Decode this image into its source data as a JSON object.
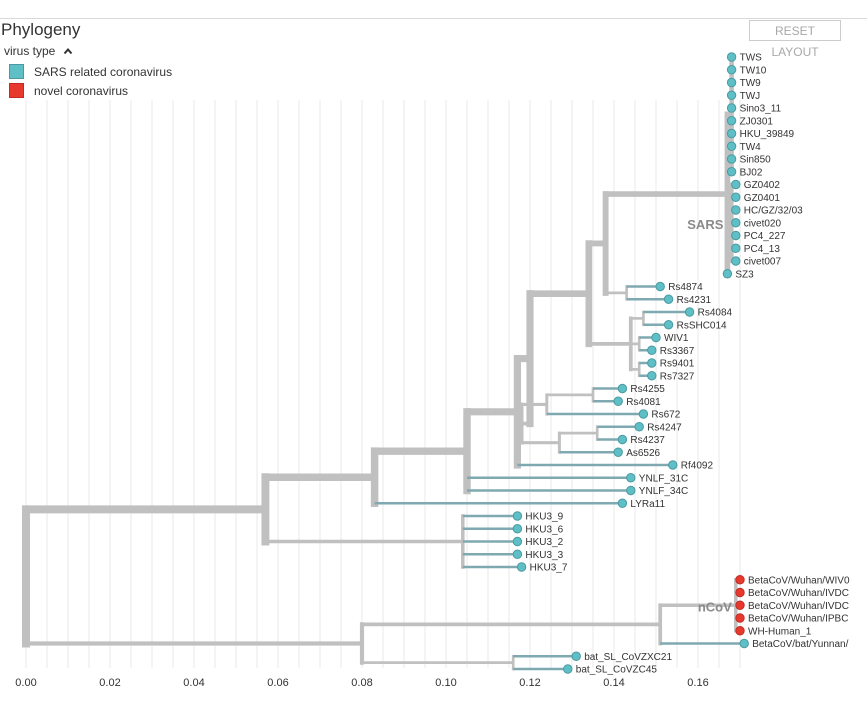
{
  "panel": {
    "title": "Phylogeny",
    "reset_label": "RESET LAYOUT"
  },
  "legend": {
    "title": "virus type",
    "toggle_icon": "chevron-up-icon",
    "items": [
      {
        "label": "SARS related coronavirus",
        "color": "#5fbfc6"
      },
      {
        "label": "novel coronavirus",
        "color": "#e8392f"
      }
    ]
  },
  "colors": {
    "branch": "#c0c0c0",
    "branch_sars_related": "#7fa9b0",
    "grid": "#e8e8e8"
  },
  "tree": {
    "x_axis_ticks": [
      "0.00",
      "0.02",
      "0.04",
      "0.06",
      "0.08",
      "0.10",
      "0.12",
      "0.14",
      "0.16"
    ],
    "clade_labels": [
      "SARS",
      "nCoV"
    ],
    "tips": [
      {
        "name": "TWS",
        "div": 0.168,
        "type": "sars"
      },
      {
        "name": "TW10",
        "div": 0.168,
        "type": "sars"
      },
      {
        "name": "TW9",
        "div": 0.168,
        "type": "sars"
      },
      {
        "name": "TWJ",
        "div": 0.168,
        "type": "sars"
      },
      {
        "name": "Sino3_11",
        "div": 0.168,
        "type": "sars"
      },
      {
        "name": "ZJ0301",
        "div": 0.168,
        "type": "sars"
      },
      {
        "name": "HKU_39849",
        "div": 0.168,
        "type": "sars"
      },
      {
        "name": "TW4",
        "div": 0.168,
        "type": "sars"
      },
      {
        "name": "Sin850",
        "div": 0.168,
        "type": "sars"
      },
      {
        "name": "BJ02",
        "div": 0.168,
        "type": "sars"
      },
      {
        "name": "GZ0402",
        "div": 0.169,
        "type": "sars"
      },
      {
        "name": "GZ0401",
        "div": 0.169,
        "type": "sars"
      },
      {
        "name": "HC/GZ/32/03",
        "div": 0.169,
        "type": "sars"
      },
      {
        "name": "civet020",
        "div": 0.169,
        "type": "sars"
      },
      {
        "name": "PC4_227",
        "div": 0.169,
        "type": "sars"
      },
      {
        "name": "PC4_13",
        "div": 0.169,
        "type": "sars"
      },
      {
        "name": "civet007",
        "div": 0.169,
        "type": "sars"
      },
      {
        "name": "SZ3",
        "div": 0.167,
        "type": "sars"
      },
      {
        "name": "Rs4874",
        "div": 0.151,
        "type": "sars"
      },
      {
        "name": "Rs4231",
        "div": 0.153,
        "type": "sars"
      },
      {
        "name": "Rs4084",
        "div": 0.158,
        "type": "sars"
      },
      {
        "name": "RsSHC014",
        "div": 0.153,
        "type": "sars"
      },
      {
        "name": "WIV1",
        "div": 0.15,
        "type": "sars"
      },
      {
        "name": "Rs3367",
        "div": 0.149,
        "type": "sars"
      },
      {
        "name": "Rs9401",
        "div": 0.149,
        "type": "sars"
      },
      {
        "name": "Rs7327",
        "div": 0.149,
        "type": "sars"
      },
      {
        "name": "Rs4255",
        "div": 0.142,
        "type": "sars"
      },
      {
        "name": "Rs4081",
        "div": 0.141,
        "type": "sars"
      },
      {
        "name": "Rs672",
        "div": 0.147,
        "type": "sars"
      },
      {
        "name": "Rs4247",
        "div": 0.146,
        "type": "sars"
      },
      {
        "name": "Rs4237",
        "div": 0.142,
        "type": "sars"
      },
      {
        "name": "As6526",
        "div": 0.141,
        "type": "sars"
      },
      {
        "name": "Rf4092",
        "div": 0.154,
        "type": "sars"
      },
      {
        "name": "YNLF_31C",
        "div": 0.144,
        "type": "sars"
      },
      {
        "name": "YNLF_34C",
        "div": 0.144,
        "type": "sars"
      },
      {
        "name": "LYRa11",
        "div": 0.142,
        "type": "sars"
      },
      {
        "name": "HKU3_9",
        "div": 0.117,
        "type": "sars"
      },
      {
        "name": "HKU3_6",
        "div": 0.117,
        "type": "sars"
      },
      {
        "name": "HKU3_2",
        "div": 0.117,
        "type": "sars"
      },
      {
        "name": "HKU3_3",
        "div": 0.117,
        "type": "sars"
      },
      {
        "name": "HKU3_7",
        "div": 0.118,
        "type": "sars"
      },
      {
        "name": "BetaCoV/Wuhan/WIV0",
        "div": 0.17,
        "type": "ncov"
      },
      {
        "name": "BetaCoV/Wuhan/IVDC",
        "div": 0.17,
        "type": "ncov"
      },
      {
        "name": "BetaCoV/Wuhan/IVDC",
        "div": 0.17,
        "type": "ncov"
      },
      {
        "name": "BetaCoV/Wuhan/IPBC",
        "div": 0.17,
        "type": "ncov"
      },
      {
        "name": "WH-Human_1",
        "div": 0.17,
        "type": "ncov"
      },
      {
        "name": "BetaCoV/bat/Yunnan/",
        "div": 0.171,
        "type": "sars"
      },
      {
        "name": "bat_SL_CoVZXC21",
        "div": 0.131,
        "type": "sars"
      },
      {
        "name": "bat_SL_CoVZC45",
        "div": 0.129,
        "type": "sars"
      }
    ]
  }
}
